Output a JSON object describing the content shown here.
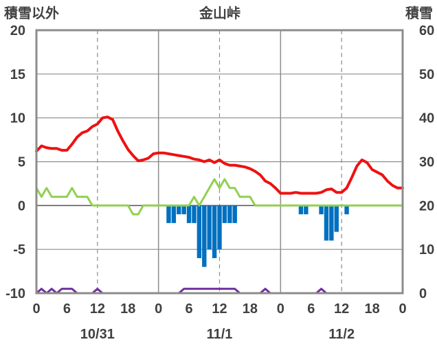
{
  "chart_data": {
    "type": "line",
    "title": "金山峠",
    "ylabel_left": "積雪以外",
    "ylabel_right": "積雪",
    "ylim_left": [
      -10,
      20
    ],
    "ylim_right": [
      0,
      60
    ],
    "yticks_left": [
      "20",
      "15",
      "10",
      "5",
      "0",
      "-5",
      "-10"
    ],
    "yticks_right": [
      "60",
      "50",
      "40",
      "30",
      "20",
      "10",
      "0"
    ],
    "xlim_hours": [
      0,
      72
    ],
    "xtick_labels": [
      "0",
      "6",
      "12",
      "18",
      "0",
      "6",
      "12",
      "18",
      "0",
      "6",
      "12",
      "18",
      "0"
    ],
    "date_labels": [
      "10/31",
      "11/1",
      "11/2"
    ],
    "colors": {
      "temperature": "#ee1111",
      "wind": "#92d050",
      "precipitation": "#0070c0",
      "snow_depth": "#7030a0",
      "grid": "#8c8c8c",
      "frame": "#8c8c8c"
    },
    "series": [
      {
        "key": "temperature",
        "color": "#ee1111",
        "type": "line",
        "x": [
          0,
          1,
          2,
          3,
          4,
          5,
          6,
          7,
          8,
          9,
          10,
          11,
          12,
          13,
          14,
          15,
          16,
          17,
          18,
          19,
          20,
          21,
          22,
          23,
          24,
          25,
          26,
          27,
          28,
          29,
          30,
          31,
          32,
          33,
          34,
          35,
          36,
          37,
          38,
          39,
          40,
          41,
          42,
          43,
          44,
          45,
          46,
          47,
          48,
          49,
          50,
          51,
          52,
          53,
          54,
          55,
          56,
          57,
          58,
          59,
          60,
          61,
          62,
          63,
          64,
          65,
          66,
          67,
          68,
          69,
          70,
          71
        ],
        "values": [
          6.2,
          6.8,
          6.6,
          6.5,
          6.5,
          6.3,
          6.3,
          7.0,
          7.8,
          8.3,
          8.5,
          9.0,
          9.3,
          10.0,
          10.1,
          9.8,
          8.5,
          7.4,
          6.4,
          5.7,
          5.1,
          5.2,
          5.4,
          5.9,
          6.0,
          6.0,
          5.9,
          5.8,
          5.7,
          5.6,
          5.5,
          5.3,
          5.2,
          5.0,
          5.2,
          4.9,
          5.2,
          4.8,
          4.6,
          4.6,
          4.5,
          4.4,
          4.2,
          3.9,
          3.5,
          2.8,
          2.5,
          2.0,
          1.4,
          1.4,
          1.4,
          1.5,
          1.4,
          1.4,
          1.4,
          1.4,
          1.5,
          1.8,
          1.9,
          1.5,
          1.5,
          2.0,
          3.2,
          4.5,
          5.2,
          4.9,
          4.1,
          3.8,
          3.5,
          2.8,
          2.3,
          2.0
        ]
      },
      {
        "key": "wind",
        "color": "#92d050",
        "type": "line",
        "x": [
          0,
          1,
          2,
          3,
          4,
          5,
          6,
          7,
          8,
          9,
          10,
          11,
          12,
          13,
          14,
          15,
          16,
          17,
          18,
          19,
          20,
          21,
          22,
          23,
          24,
          25,
          26,
          27,
          28,
          29,
          30,
          31,
          32,
          33,
          34,
          35,
          36,
          37,
          38,
          39,
          40,
          41,
          42,
          43,
          44,
          45,
          46,
          47,
          48,
          49,
          50,
          51,
          52,
          53,
          54,
          55,
          56,
          57,
          58,
          59,
          60,
          61,
          62,
          63,
          64,
          65,
          66,
          67,
          68,
          69,
          70,
          71
        ],
        "values": [
          2,
          1,
          2,
          1,
          1,
          1,
          1,
          2,
          1,
          1,
          1,
          0,
          0,
          0,
          0,
          0,
          0,
          0,
          0,
          -1,
          -1,
          0,
          0,
          0,
          0,
          0,
          0,
          0,
          0,
          0,
          0,
          1,
          0,
          1,
          2,
          3,
          2,
          3,
          2,
          2,
          1,
          1,
          1,
          0,
          0,
          0,
          0,
          0,
          0,
          0,
          0,
          0,
          0,
          0,
          0,
          0,
          0,
          0,
          0,
          0,
          0,
          0,
          0,
          0,
          0,
          0,
          0,
          0,
          0,
          0,
          0,
          0
        ]
      },
      {
        "key": "precipitation",
        "color": "#0070c0",
        "type": "bar",
        "x": [
          26,
          27,
          28,
          29,
          30,
          31,
          32,
          33,
          34,
          35,
          36,
          37,
          38,
          39,
          52,
          53,
          56,
          57,
          58,
          59,
          61
        ],
        "values": [
          -2,
          -2,
          -1,
          -1,
          -2,
          -2,
          -6,
          -7,
          -5,
          -6,
          -5,
          -2,
          -2,
          -2,
          -1,
          -1,
          -1,
          -4,
          -4,
          -3,
          -1
        ]
      },
      {
        "key": "snow_depth",
        "color": "#7030a0",
        "type": "line",
        "axis": "right",
        "x": [
          0,
          1,
          2,
          3,
          4,
          5,
          6,
          7,
          8,
          9,
          10,
          11,
          12,
          13,
          14,
          15,
          16,
          17,
          18,
          19,
          20,
          21,
          22,
          23,
          24,
          25,
          26,
          27,
          28,
          29,
          30,
          31,
          32,
          33,
          34,
          35,
          36,
          37,
          38,
          39,
          40,
          41,
          42,
          43,
          44,
          45,
          46,
          47,
          48,
          49,
          50,
          51,
          52,
          53,
          54,
          55,
          56,
          57,
          58,
          59,
          60,
          61,
          62,
          63,
          64,
          65,
          66,
          67,
          68,
          69,
          70,
          71
        ],
        "values": [
          0,
          1,
          0,
          1,
          0,
          1,
          1,
          1,
          0,
          0,
          0,
          0,
          1,
          0,
          0,
          0,
          0,
          0,
          0,
          0,
          0,
          0,
          0,
          0,
          0,
          0,
          0,
          0,
          0,
          1,
          1,
          1,
          1,
          1,
          1,
          1,
          1,
          1,
          1,
          1,
          0,
          0,
          0,
          0,
          0,
          1,
          0,
          0,
          0,
          0,
          0,
          0,
          0,
          0,
          0,
          0,
          1,
          0,
          0,
          0,
          0,
          0,
          0,
          0,
          0,
          0,
          0,
          0,
          0,
          0,
          0,
          0
        ]
      }
    ]
  }
}
